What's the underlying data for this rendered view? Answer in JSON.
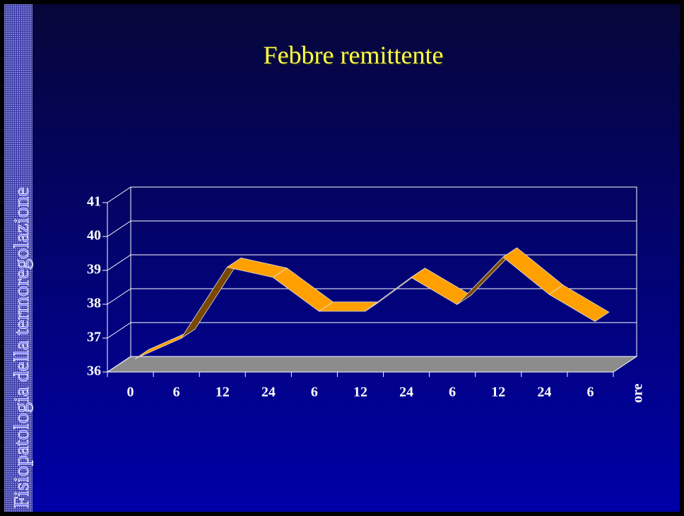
{
  "sidebar": "Fisiopatologia della termoregolazione",
  "chart_data": {
    "type": "line",
    "title": "Febbre remittente",
    "categories": [
      "0",
      "6",
      "12",
      "24",
      "6",
      "12",
      "24",
      "6",
      "12",
      "24",
      "6"
    ],
    "values": [
      36.3,
      36.9,
      39.0,
      38.7,
      37.7,
      37.7,
      38.7,
      37.9,
      39.3,
      38.2,
      37.4
    ],
    "x_label": "ore",
    "ylim": [
      36,
      41
    ],
    "yticks": [
      36,
      37,
      38,
      39,
      40,
      41
    ],
    "grid": true,
    "color": "#ffa000",
    "shade_color": "#7a4800",
    "floor_color": "#8c8c8c"
  }
}
